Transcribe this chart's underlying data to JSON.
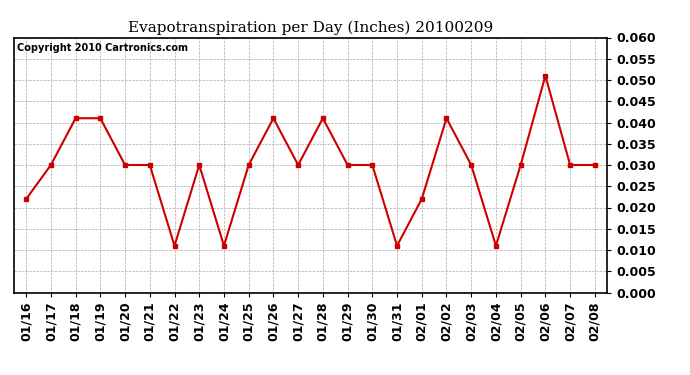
{
  "title": "Evapotranspiration per Day (Inches) 20100209",
  "copyright_text": "Copyright 2010 Cartronics.com",
  "dates": [
    "01/16",
    "01/17",
    "01/18",
    "01/19",
    "01/20",
    "01/21",
    "01/22",
    "01/23",
    "01/24",
    "01/25",
    "01/26",
    "01/27",
    "01/28",
    "01/29",
    "01/30",
    "01/31",
    "02/01",
    "02/02",
    "02/03",
    "02/04",
    "02/05",
    "02/06",
    "02/07",
    "02/08"
  ],
  "values": [
    0.022,
    0.03,
    0.041,
    0.041,
    0.03,
    0.03,
    0.011,
    0.03,
    0.011,
    0.03,
    0.041,
    0.03,
    0.041,
    0.03,
    0.03,
    0.011,
    0.022,
    0.041,
    0.03,
    0.011,
    0.03,
    0.051,
    0.03,
    0.03
  ],
  "line_color": "#cc0000",
  "marker": "s",
  "marker_size": 3,
  "marker_color": "#cc0000",
  "ylim": [
    0.0,
    0.06
  ],
  "ytick_step": 0.005,
  "background_color": "#ffffff",
  "plot_bg_color": "#ffffff",
  "grid_color": "#aaaaaa",
  "title_fontsize": 11,
  "copyright_fontsize": 7,
  "tick_fontsize": 9,
  "line_width": 1.5
}
